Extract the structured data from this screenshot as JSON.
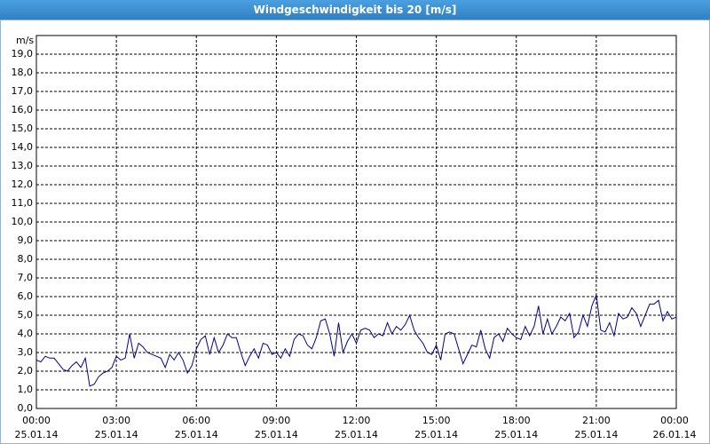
{
  "chart_data": {
    "type": "line",
    "title": "Windgeschwindigkeit bis 20 [m/s]",
    "y_unit": "m/s",
    "x": [
      0,
      10,
      20,
      30,
      40,
      50,
      60,
      70,
      80,
      90,
      100,
      110,
      120,
      130,
      140,
      150,
      160,
      170,
      180,
      190,
      200,
      210,
      220,
      230,
      240,
      250,
      260,
      270,
      280,
      290,
      300,
      310,
      320,
      330,
      340,
      350,
      360,
      370,
      380,
      390,
      400,
      410,
      420,
      430,
      440,
      450,
      460,
      470,
      480,
      490,
      500,
      510,
      520,
      530,
      540,
      550,
      560,
      570,
      580,
      590,
      600,
      610,
      620,
      630,
      640,
      650,
      660,
      670,
      680,
      690,
      700,
      710,
      720,
      730,
      740,
      750,
      760,
      770,
      780,
      790,
      800,
      810,
      820,
      830,
      840,
      850,
      860,
      870,
      880,
      890,
      900,
      910,
      920,
      930,
      940,
      950,
      960,
      970,
      980,
      990,
      1000,
      1010,
      1020,
      1030,
      1040,
      1050,
      1060,
      1070,
      1080,
      1090,
      1100,
      1110,
      1120,
      1130,
      1140,
      1150,
      1160,
      1170,
      1180,
      1190,
      1200,
      1210,
      1220,
      1230,
      1240,
      1250,
      1260,
      1270,
      1280,
      1290,
      1300,
      1310,
      1320,
      1330,
      1340,
      1350,
      1360,
      1370,
      1380,
      1390,
      1400,
      1410,
      1420,
      1430,
      1440
    ],
    "series": [
      {
        "name": "Windgeschwindigkeit",
        "color": "#00008b",
        "values": [
          2.6,
          2.5,
          2.8,
          2.7,
          2.7,
          2.4,
          2.1,
          2.0,
          2.3,
          2.5,
          2.2,
          2.7,
          1.2,
          1.3,
          1.7,
          1.9,
          2.0,
          2.2,
          2.8,
          2.6,
          2.7,
          4.0,
          2.7,
          3.5,
          3.3,
          3.0,
          2.9,
          2.8,
          2.7,
          2.2,
          2.9,
          2.6,
          3.0,
          2.6,
          1.9,
          2.3,
          3.2,
          3.7,
          3.9,
          2.9,
          3.8,
          3.0,
          3.4,
          4.0,
          3.8,
          3.8,
          3.0,
          2.3,
          2.8,
          3.2,
          2.7,
          3.5,
          3.4,
          2.9,
          3.0,
          2.7,
          3.2,
          2.8,
          3.7,
          4.0,
          3.9,
          3.4,
          3.2,
          3.8,
          4.7,
          4.8,
          4.0,
          2.8,
          4.6,
          3.0,
          3.6,
          4.0,
          3.5,
          4.2,
          4.3,
          4.2,
          3.8,
          4.0,
          3.9,
          4.6,
          4.0,
          4.4,
          4.2,
          4.5,
          5.0,
          4.2,
          3.8,
          3.5,
          3.0,
          2.9,
          3.4,
          2.6,
          4.0,
          4.1,
          4.0,
          3.2,
          2.4,
          2.9,
          3.4,
          3.3,
          4.2,
          3.2,
          2.7,
          3.8,
          4.0,
          3.6,
          4.3,
          4.0,
          3.8,
          3.7,
          4.4,
          3.9,
          4.4,
          5.5,
          4.0,
          4.8,
          4.0,
          4.4,
          4.9,
          4.7,
          5.1,
          3.8,
          4.1,
          5.0,
          4.4,
          5.5,
          6.1,
          4.2,
          4.1,
          4.6,
          3.9,
          5.1,
          4.8,
          4.9,
          5.4,
          5.1,
          4.4,
          5.0,
          5.6,
          5.6,
          5.8,
          4.7,
          5.2,
          4.8,
          4.9
        ]
      }
    ],
    "xlim": [
      0,
      1440
    ],
    "xticks": [
      {
        "value": 0,
        "label": "00:00\n25.01.14"
      },
      {
        "value": 180,
        "label": "03:00\n25.01.14"
      },
      {
        "value": 360,
        "label": "06:00\n25.01.14"
      },
      {
        "value": 540,
        "label": "09:00\n25.01.14"
      },
      {
        "value": 720,
        "label": "12:00\n25.01.14"
      },
      {
        "value": 900,
        "label": "15:00\n25.01.14"
      },
      {
        "value": 1080,
        "label": "18:00\n25.01.14"
      },
      {
        "value": 1260,
        "label": "21:00\n25.01.14"
      },
      {
        "value": 1440,
        "label": "00:00\n26.01.14"
      }
    ],
    "ylim": [
      0,
      20
    ],
    "yticks": [
      {
        "value": 0,
        "label": "0,0"
      },
      {
        "value": 1,
        "label": "1,0"
      },
      {
        "value": 2,
        "label": "2,0"
      },
      {
        "value": 3,
        "label": "3,0"
      },
      {
        "value": 4,
        "label": "4,0"
      },
      {
        "value": 5,
        "label": "5,0"
      },
      {
        "value": 6,
        "label": "6,0"
      },
      {
        "value": 7,
        "label": "7,0"
      },
      {
        "value": 8,
        "label": "8,0"
      },
      {
        "value": 9,
        "label": "9,0"
      },
      {
        "value": 10,
        "label": "10,0"
      },
      {
        "value": 11,
        "label": "11,0"
      },
      {
        "value": 12,
        "label": "12,0"
      },
      {
        "value": 13,
        "label": "13,0"
      },
      {
        "value": 14,
        "label": "14,0"
      },
      {
        "value": 15,
        "label": "15,0"
      },
      {
        "value": 16,
        "label": "16,0"
      },
      {
        "value": 17,
        "label": "17,0"
      },
      {
        "value": 18,
        "label": "18,0"
      },
      {
        "value": 19,
        "label": "19,0"
      }
    ],
    "grid": true
  }
}
